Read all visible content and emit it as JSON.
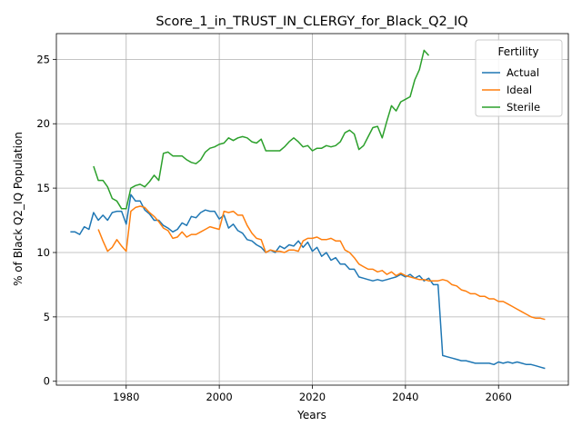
{
  "chart_data": {
    "type": "line",
    "title": "Score_1_in_TRUST_IN_CLERGY_for_Black_Q2_IQ",
    "xlabel": "Years",
    "ylabel": "% of Black Q2_IQ Population",
    "xlim": [
      1965,
      2075
    ],
    "ylim": [
      -0.3,
      27
    ],
    "xticks": [
      1980,
      2000,
      2020,
      2040,
      2060
    ],
    "yticks": [
      0,
      5,
      10,
      15,
      20,
      25
    ],
    "grid": true,
    "legend": {
      "title": "Fertility",
      "placement": "top-right"
    },
    "series": [
      {
        "name": "Actual",
        "color": "#1f77b4",
        "x": [
          1968,
          1969,
          1970,
          1971,
          1972,
          1973,
          1974,
          1975,
          1976,
          1977,
          1978,
          1979,
          1980,
          1981,
          1982,
          1983,
          1984,
          1985,
          1986,
          1987,
          1988,
          1989,
          1990,
          1991,
          1992,
          1993,
          1994,
          1995,
          1996,
          1997,
          1998,
          1999,
          2000,
          2001,
          2002,
          2003,
          2004,
          2005,
          2006,
          2007,
          2008,
          2009,
          2010,
          2011,
          2012,
          2013,
          2014,
          2015,
          2016,
          2017,
          2018,
          2019,
          2020,
          2021,
          2022,
          2023,
          2024,
          2025,
          2026,
          2027,
          2028,
          2029,
          2030,
          2031,
          2032,
          2033,
          2034,
          2035,
          2036,
          2037,
          2038,
          2039,
          2040,
          2041,
          2042,
          2043,
          2044,
          2045,
          2046,
          2047,
          2048,
          2049,
          2050,
          2051,
          2052,
          2053,
          2054,
          2055,
          2056,
          2057,
          2058,
          2059,
          2060,
          2061,
          2062,
          2063,
          2064,
          2065,
          2066,
          2067,
          2068,
          2069,
          2070
        ],
        "y": [
          11.6,
          11.6,
          11.4,
          12.0,
          11.8,
          13.1,
          12.5,
          12.9,
          12.5,
          13.1,
          13.2,
          13.2,
          12.2,
          14.5,
          14.0,
          14.0,
          13.3,
          13.0,
          12.5,
          12.5,
          12.1,
          11.9,
          11.6,
          11.8,
          12.3,
          12.1,
          12.8,
          12.7,
          13.1,
          13.3,
          13.2,
          13.2,
          12.6,
          12.9,
          11.9,
          12.2,
          11.7,
          11.5,
          11.0,
          10.9,
          10.6,
          10.4,
          10.0,
          10.2,
          10.0,
          10.5,
          10.3,
          10.6,
          10.5,
          10.9,
          10.4,
          10.8,
          10.1,
          10.4,
          9.7,
          10.0,
          9.4,
          9.6,
          9.1,
          9.1,
          8.7,
          8.7,
          8.1,
          8.0,
          7.9,
          7.8,
          7.9,
          7.8,
          7.9,
          8.0,
          8.1,
          8.3,
          8.1,
          8.3,
          8.0,
          8.2,
          7.8,
          8.0,
          7.5,
          7.5,
          2.0,
          1.9,
          1.8,
          1.7,
          1.6,
          1.6,
          1.5,
          1.4,
          1.4,
          1.4,
          1.4,
          1.3,
          1.5,
          1.4,
          1.5,
          1.4,
          1.5,
          1.4,
          1.3,
          1.3,
          1.2,
          1.1,
          1.0
        ]
      },
      {
        "name": "Ideal",
        "color": "#ff7f0e",
        "x": [
          1974,
          1975,
          1976,
          1977,
          1978,
          1979,
          1980,
          1981,
          1982,
          1983,
          1984,
          1985,
          1986,
          1987,
          1988,
          1989,
          1990,
          1991,
          1992,
          1993,
          1994,
          1995,
          1996,
          1997,
          1998,
          1999,
          2000,
          2001,
          2002,
          2003,
          2004,
          2005,
          2006,
          2007,
          2008,
          2009,
          2010,
          2011,
          2012,
          2013,
          2014,
          2015,
          2016,
          2017,
          2018,
          2019,
          2020,
          2021,
          2022,
          2023,
          2024,
          2025,
          2026,
          2027,
          2028,
          2029,
          2030,
          2031,
          2032,
          2033,
          2034,
          2035,
          2036,
          2037,
          2038,
          2039,
          2040,
          2041,
          2042,
          2043,
          2044,
          2045,
          2046,
          2047,
          2048,
          2049,
          2050,
          2051,
          2052,
          2053,
          2054,
          2055,
          2056,
          2057,
          2058,
          2059,
          2060,
          2061,
          2062,
          2063,
          2064,
          2065,
          2066,
          2067,
          2068,
          2069,
          2070
        ],
        "y": [
          11.8,
          10.9,
          10.1,
          10.4,
          11.0,
          10.5,
          10.1,
          13.2,
          13.5,
          13.6,
          13.5,
          13.1,
          12.8,
          12.4,
          11.9,
          11.7,
          11.1,
          11.2,
          11.6,
          11.2,
          11.4,
          11.4,
          11.6,
          11.8,
          12.0,
          11.9,
          11.8,
          13.2,
          13.1,
          13.2,
          12.9,
          12.9,
          12.1,
          11.5,
          11.1,
          11.0,
          10.0,
          10.2,
          10.1,
          10.1,
          10.0,
          10.2,
          10.2,
          10.1,
          10.9,
          11.1,
          11.1,
          11.2,
          11.0,
          11.0,
          11.1,
          10.9,
          10.9,
          10.2,
          10.0,
          9.6,
          9.1,
          8.9,
          8.7,
          8.7,
          8.5,
          8.6,
          8.3,
          8.5,
          8.2,
          8.4,
          8.2,
          8.1,
          8.0,
          7.9,
          7.9,
          7.8,
          7.8,
          7.8,
          7.9,
          7.8,
          7.5,
          7.4,
          7.1,
          7.0,
          6.8,
          6.8,
          6.6,
          6.6,
          6.4,
          6.4,
          6.2,
          6.2,
          6.0,
          5.8,
          5.6,
          5.4,
          5.2,
          5.0,
          4.9,
          4.9,
          4.8
        ]
      },
      {
        "name": "Sterile",
        "color": "#2ca02c",
        "x": [
          1973,
          1974,
          1975,
          1976,
          1977,
          1978,
          1979,
          1980,
          1981,
          1982,
          1983,
          1984,
          1985,
          1986,
          1987,
          1988,
          1989,
          1990,
          1991,
          1992,
          1993,
          1994,
          1995,
          1996,
          1997,
          1998,
          1999,
          2000,
          2001,
          2002,
          2003,
          2004,
          2005,
          2006,
          2007,
          2008,
          2009,
          2010,
          2011,
          2012,
          2013,
          2014,
          2015,
          2016,
          2017,
          2018,
          2019,
          2020,
          2021,
          2022,
          2023,
          2024,
          2025,
          2026,
          2027,
          2028,
          2029,
          2030,
          2031,
          2032,
          2033,
          2034,
          2035,
          2036,
          2037,
          2038,
          2039,
          2040,
          2041,
          2042,
          2043,
          2044,
          2045
        ],
        "y": [
          16.7,
          15.6,
          15.6,
          15.1,
          14.2,
          14.0,
          13.4,
          13.4,
          15.0,
          15.2,
          15.3,
          15.1,
          15.5,
          16.0,
          15.6,
          17.7,
          17.8,
          17.5,
          17.5,
          17.5,
          17.2,
          17.0,
          16.9,
          17.2,
          17.8,
          18.1,
          18.2,
          18.4,
          18.5,
          18.9,
          18.7,
          18.9,
          19.0,
          18.9,
          18.6,
          18.5,
          18.8,
          17.9,
          17.9,
          17.9,
          17.9,
          18.2,
          18.6,
          18.9,
          18.6,
          18.2,
          18.3,
          17.9,
          18.1,
          18.1,
          18.3,
          18.2,
          18.3,
          18.6,
          19.3,
          19.5,
          19.2,
          18.0,
          18.3,
          19.0,
          19.7,
          19.8,
          18.9,
          20.2,
          21.4,
          21.0,
          21.7,
          21.9,
          22.1,
          23.4,
          24.2,
          25.7,
          25.3
        ]
      }
    ]
  }
}
